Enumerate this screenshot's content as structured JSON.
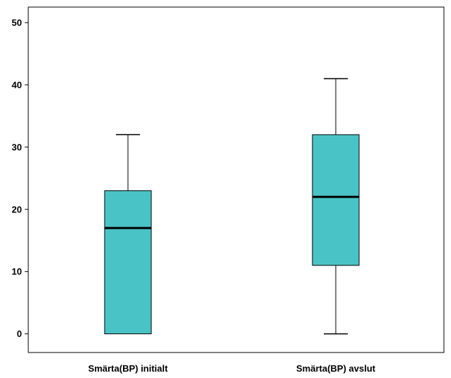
{
  "chart_data": {
    "type": "boxplot",
    "title": "",
    "xlabel": "",
    "ylabel": "",
    "ylim": [
      -3,
      52.5
    ],
    "yticks": [
      0,
      10,
      20,
      30,
      40,
      50
    ],
    "grid": false,
    "categories": [
      "Smärta(BP) initialt",
      "Smärta(BP) avslut"
    ],
    "boxes": [
      {
        "min": 0,
        "q1": 0,
        "median": 17,
        "q3": 23,
        "max": 32
      },
      {
        "min": 0,
        "q1": 11,
        "median": 22,
        "q3": 32,
        "max": 41
      }
    ],
    "colors": {
      "box_fill": "#4ac3c6",
      "stroke": "#000000"
    }
  }
}
